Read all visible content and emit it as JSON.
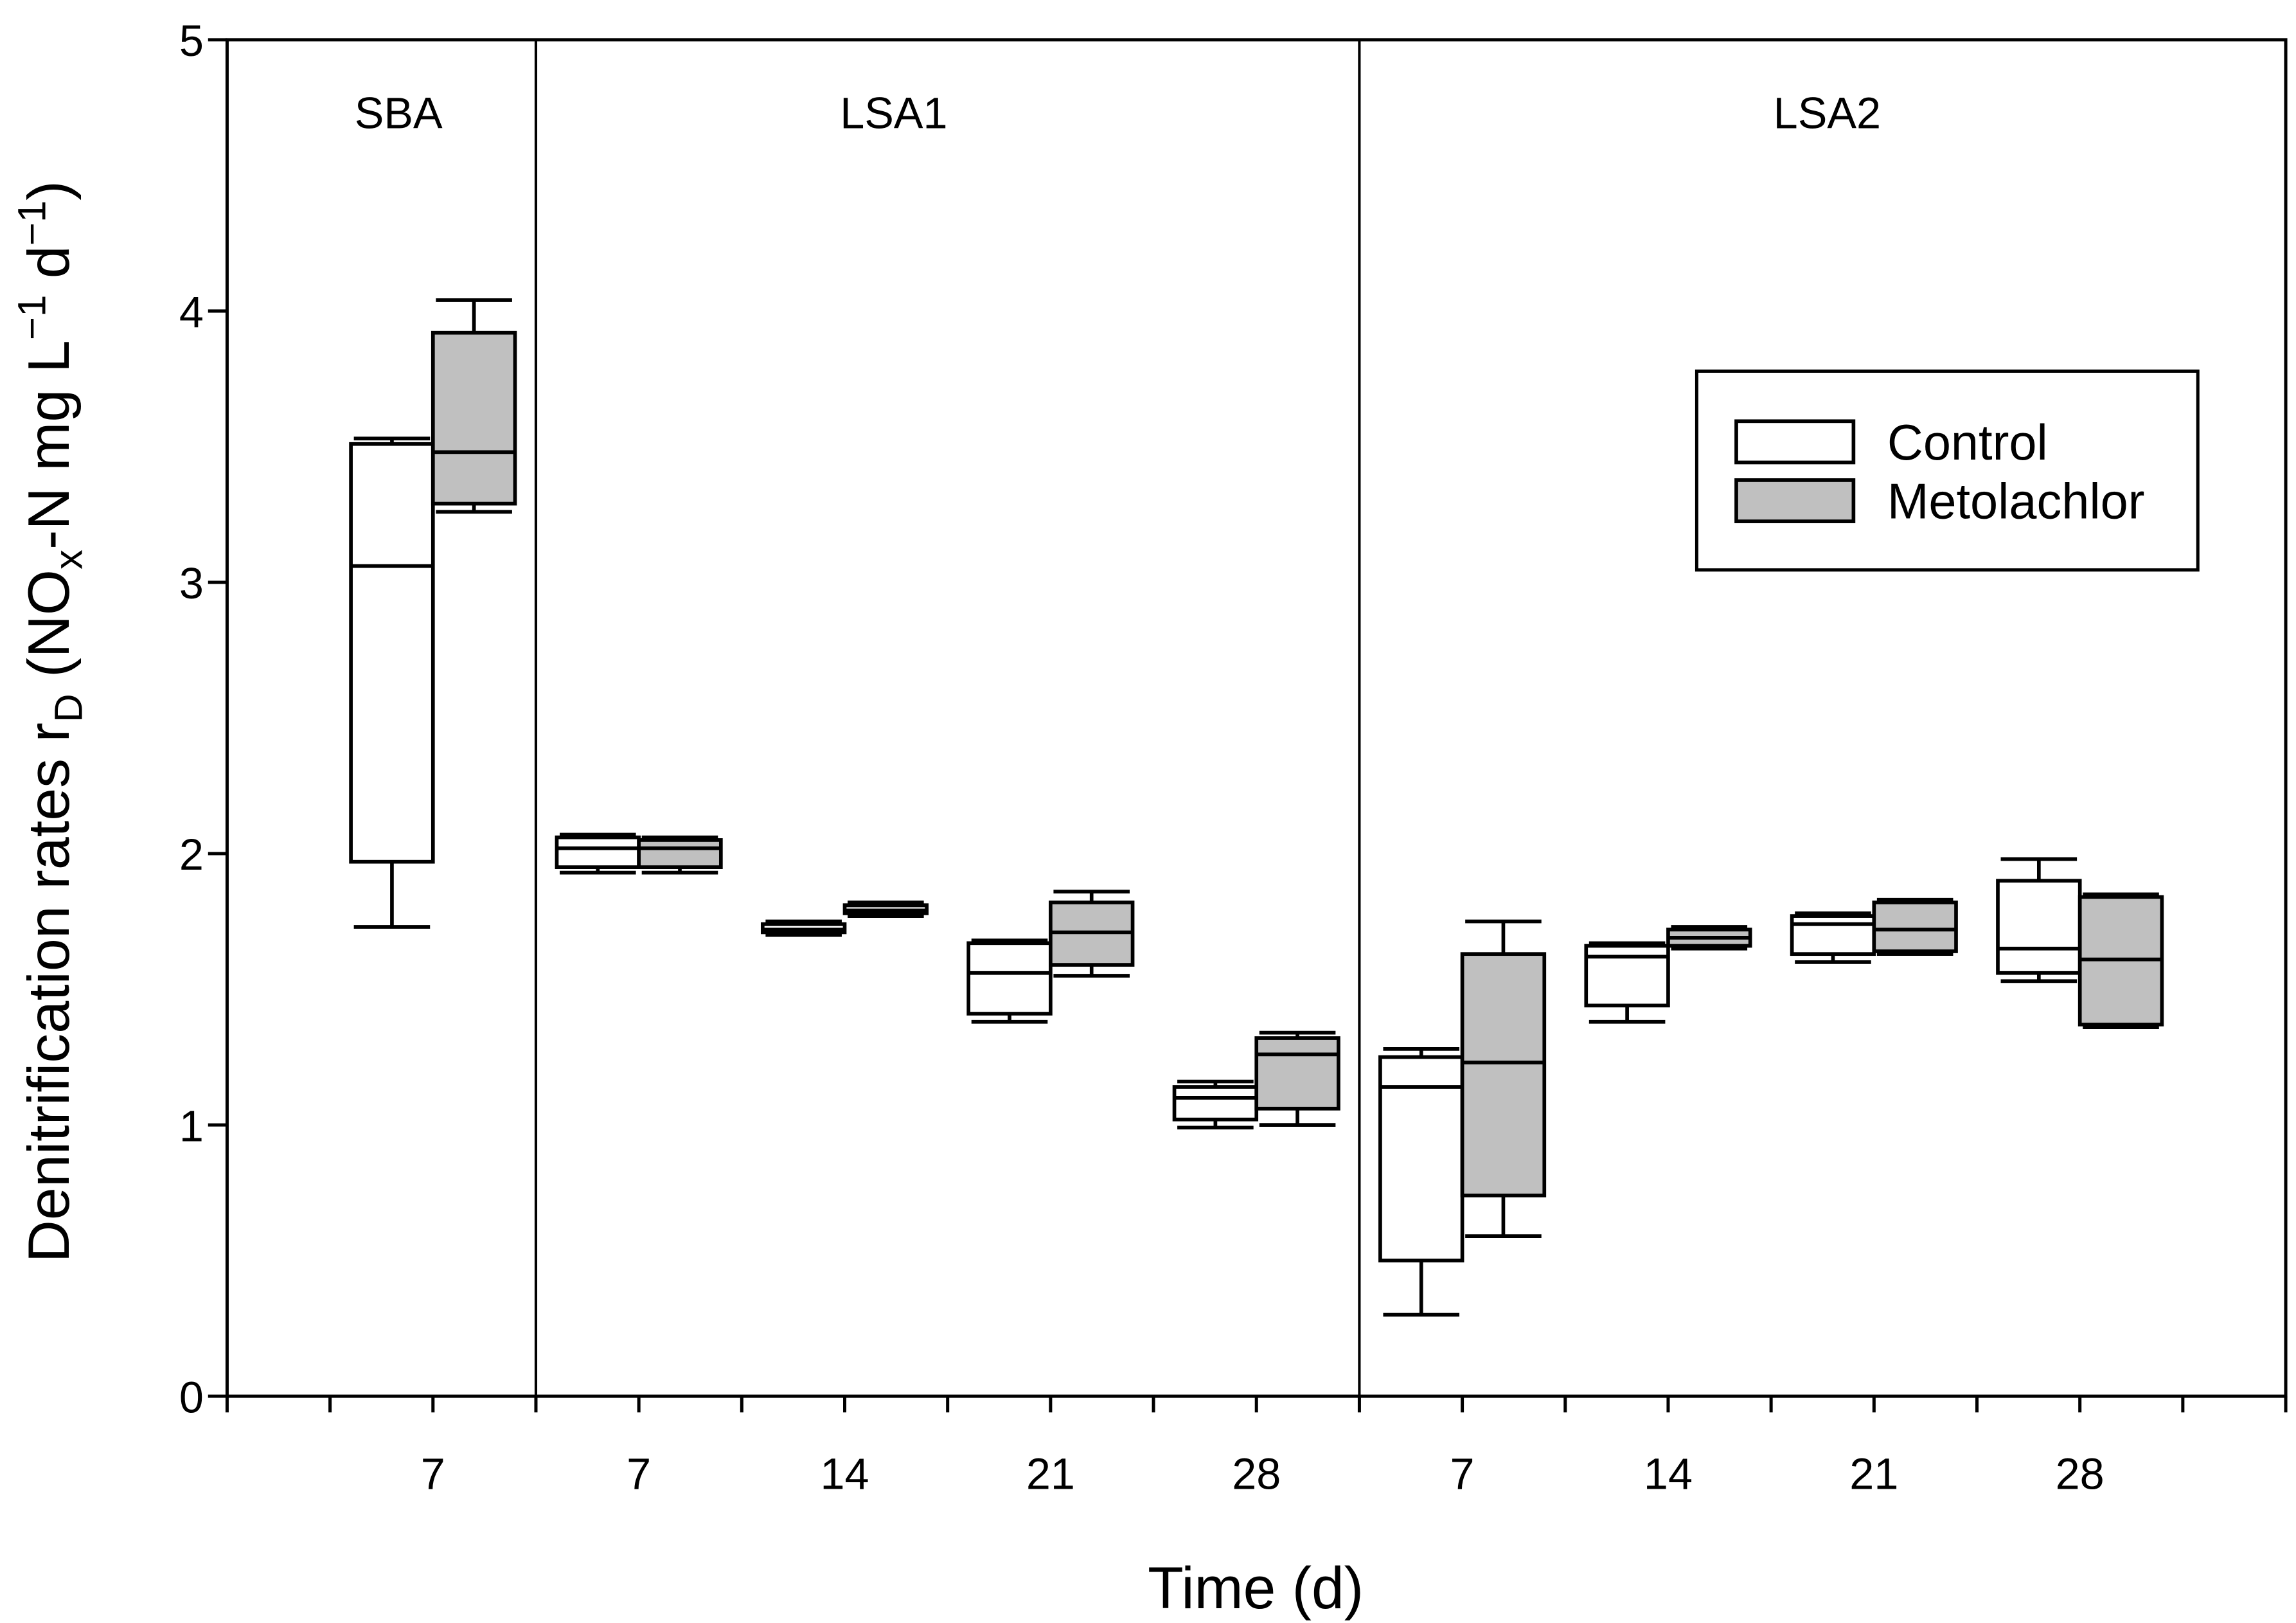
{
  "chart_data": {
    "type": "box",
    "title": "",
    "xlabel": "Time (d)",
    "ylabel_segments": [
      "Denitrification rates r",
      "D",
      " (NO",
      "x",
      "-N mg L",
      "−1",
      " d",
      "−1",
      ")"
    ],
    "ylim": [
      0,
      5
    ],
    "y_ticks": [
      0,
      1,
      2,
      3,
      4,
      5
    ],
    "groups": [
      {
        "label": "SBA",
        "categories": [
          "7"
        ]
      },
      {
        "label": "LSA1",
        "categories": [
          "7",
          "14",
          "21",
          "28"
        ]
      },
      {
        "label": "LSA2",
        "categories": [
          "7",
          "14",
          "21",
          "28"
        ]
      }
    ],
    "series": [
      {
        "name": "Control",
        "color": "#ffffff",
        "boxes": [
          {
            "min": 1.73,
            "q1": 1.97,
            "median": 3.06,
            "q3": 3.51,
            "max": 3.53
          },
          {
            "min": 1.93,
            "q1": 1.95,
            "median": 2.02,
            "q3": 2.06,
            "max": 2.07
          },
          {
            "min": 1.7,
            "q1": 1.71,
            "median": 1.72,
            "q3": 1.74,
            "max": 1.75
          },
          {
            "min": 1.38,
            "q1": 1.41,
            "median": 1.56,
            "q3": 1.67,
            "max": 1.68
          },
          {
            "min": 0.99,
            "q1": 1.02,
            "median": 1.1,
            "q3": 1.14,
            "max": 1.16
          },
          {
            "min": 0.3,
            "q1": 0.5,
            "median": 1.14,
            "q3": 1.25,
            "max": 1.28
          },
          {
            "min": 1.38,
            "q1": 1.44,
            "median": 1.62,
            "q3": 1.66,
            "max": 1.67
          },
          {
            "min": 1.6,
            "q1": 1.63,
            "median": 1.74,
            "q3": 1.77,
            "max": 1.78
          },
          {
            "min": 1.53,
            "q1": 1.56,
            "median": 1.65,
            "q3": 1.9,
            "max": 1.98
          }
        ]
      },
      {
        "name": "Metolachlor",
        "color": "#c0c0c0",
        "boxes": [
          {
            "min": 3.26,
            "q1": 3.29,
            "median": 3.48,
            "q3": 3.92,
            "max": 4.04
          },
          {
            "min": 1.93,
            "q1": 1.95,
            "median": 2.02,
            "q3": 2.05,
            "max": 2.06
          },
          {
            "min": 1.77,
            "q1": 1.78,
            "median": 1.79,
            "q3": 1.81,
            "max": 1.82
          },
          {
            "min": 1.55,
            "q1": 1.59,
            "median": 1.71,
            "q3": 1.82,
            "max": 1.86
          },
          {
            "min": 1.0,
            "q1": 1.06,
            "median": 1.26,
            "q3": 1.32,
            "max": 1.34
          },
          {
            "min": 0.59,
            "q1": 0.74,
            "median": 1.23,
            "q3": 1.63,
            "max": 1.75
          },
          {
            "min": 1.65,
            "q1": 1.66,
            "median": 1.69,
            "q3": 1.72,
            "max": 1.73
          },
          {
            "min": 1.63,
            "q1": 1.64,
            "median": 1.72,
            "q3": 1.82,
            "max": 1.83
          },
          {
            "min": 1.36,
            "q1": 1.37,
            "median": 1.61,
            "q3": 1.84,
            "max": 1.85
          }
        ]
      }
    ]
  }
}
